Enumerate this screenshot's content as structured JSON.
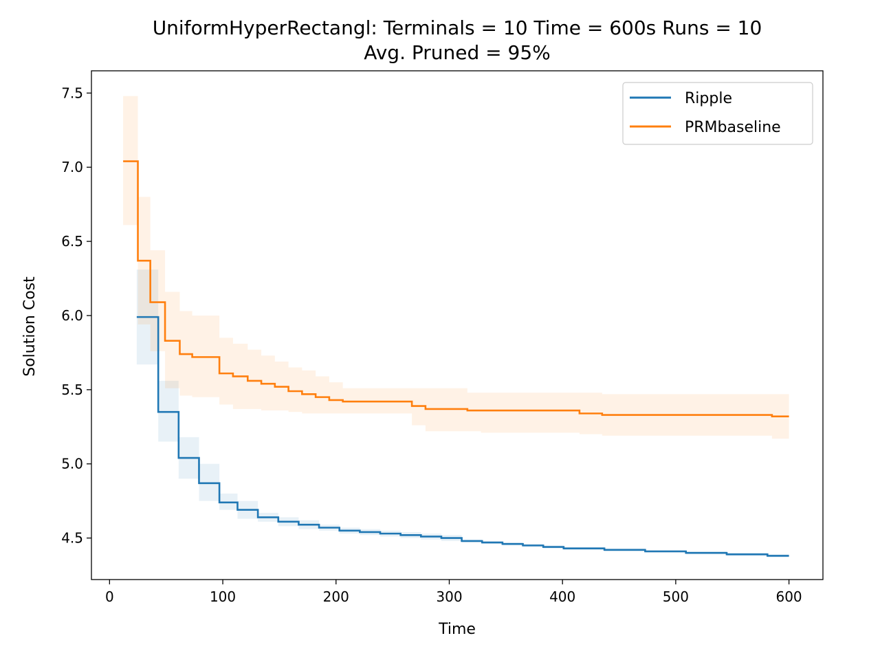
{
  "chart_data": {
    "type": "line",
    "title_line1": "UniformHyperRectangl:  Terminals = 10  Time = 600s  Runs = 10",
    "title_line2": "Avg. Pruned = 95%",
    "xlabel": "Time",
    "ylabel": "Solution Cost",
    "xlim": [
      -16,
      630
    ],
    "ylim": [
      4.22,
      7.65
    ],
    "xticks": [
      0,
      100,
      200,
      300,
      400,
      500,
      600
    ],
    "xtick_labels": [
      "0",
      "100",
      "200",
      "300",
      "400",
      "500",
      "600"
    ],
    "yticks": [
      4.5,
      5.0,
      5.5,
      6.0,
      6.5,
      7.0,
      7.5
    ],
    "ytick_labels": [
      "4.5",
      "5.0",
      "5.5",
      "6.0",
      "6.5",
      "7.0",
      "7.5"
    ],
    "grid": false,
    "legend_position": "top-right",
    "step": true,
    "series": [
      {
        "name": "Ripple",
        "color": "#1f77b4",
        "x": [
          24,
          43,
          61,
          79,
          97,
          113,
          131,
          149,
          167,
          185,
          203,
          221,
          239,
          257,
          275,
          293,
          311,
          329,
          347,
          365,
          383,
          401,
          419,
          437,
          455,
          473,
          491,
          509,
          527,
          545,
          563,
          581,
          600
        ],
        "y": [
          5.99,
          5.35,
          5.04,
          4.87,
          4.74,
          4.69,
          4.64,
          4.61,
          4.59,
          4.57,
          4.55,
          4.54,
          4.53,
          4.52,
          4.51,
          4.5,
          4.48,
          4.47,
          4.46,
          4.45,
          4.44,
          4.43,
          4.43,
          4.42,
          4.42,
          4.41,
          4.41,
          4.4,
          4.4,
          4.39,
          4.39,
          4.38,
          4.38
        ],
        "lower": [
          5.67,
          5.15,
          4.9,
          4.75,
          4.69,
          4.63,
          4.61,
          4.58,
          4.56,
          4.55,
          4.53,
          4.52,
          4.51,
          4.5,
          4.49,
          4.48,
          4.47,
          4.46,
          4.45,
          4.44,
          4.43,
          4.42,
          4.42,
          4.41,
          4.41,
          4.4,
          4.4,
          4.39,
          4.39,
          4.38,
          4.38,
          4.37,
          4.37
        ],
        "upper": [
          6.31,
          5.56,
          5.18,
          5.0,
          4.8,
          4.75,
          4.67,
          4.64,
          4.62,
          4.59,
          4.57,
          4.56,
          4.55,
          4.54,
          4.53,
          4.52,
          4.49,
          4.48,
          4.47,
          4.46,
          4.45,
          4.44,
          4.44,
          4.43,
          4.43,
          4.42,
          4.42,
          4.41,
          4.41,
          4.4,
          4.4,
          4.39,
          4.39
        ]
      },
      {
        "name": "PRMbaseline",
        "color": "#ff7f0e",
        "x": [
          12,
          25,
          36,
          49,
          62,
          73,
          97,
          109,
          122,
          134,
          146,
          158,
          170,
          182,
          194,
          206,
          218,
          230,
          267,
          279,
          316,
          328,
          415,
          435,
          585,
          600
        ],
        "y": [
          7.04,
          6.37,
          6.09,
          5.83,
          5.74,
          5.72,
          5.61,
          5.59,
          5.56,
          5.54,
          5.52,
          5.49,
          5.47,
          5.45,
          5.43,
          5.42,
          5.42,
          5.42,
          5.39,
          5.37,
          5.36,
          5.36,
          5.34,
          5.33,
          5.32,
          5.32
        ],
        "lower": [
          6.61,
          5.94,
          5.76,
          5.51,
          5.46,
          5.45,
          5.4,
          5.37,
          5.37,
          5.36,
          5.36,
          5.35,
          5.34,
          5.34,
          5.34,
          5.34,
          5.34,
          5.34,
          5.26,
          5.22,
          5.22,
          5.21,
          5.2,
          5.19,
          5.17,
          5.17
        ],
        "upper": [
          7.48,
          6.8,
          6.44,
          6.16,
          6.03,
          6.0,
          5.85,
          5.81,
          5.77,
          5.73,
          5.69,
          5.65,
          5.63,
          5.59,
          5.55,
          5.51,
          5.51,
          5.51,
          5.51,
          5.51,
          5.48,
          5.48,
          5.48,
          5.47,
          5.47,
          5.47
        ]
      }
    ]
  }
}
